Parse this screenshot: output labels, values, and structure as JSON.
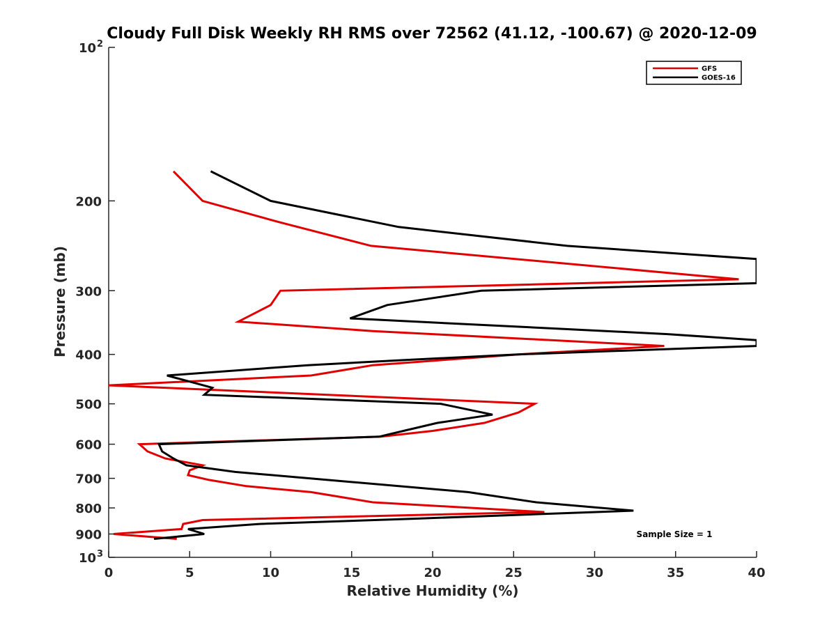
{
  "chart_data": {
    "type": "line",
    "title": "Cloudy Full Disk Weekly RH RMS over 72562 (41.12, -100.67) @ 2020-12-09",
    "xlabel": "Relative Humidity (%)",
    "ylabel": "Pressure (mb)",
    "xlim": [
      0,
      40
    ],
    "ylim": [
      100,
      1000
    ],
    "yscale": "log",
    "yreversed": true,
    "grid": false,
    "legend_position": "top-right",
    "x_ticks": [
      {
        "value": 0,
        "label": "0"
      },
      {
        "value": 5,
        "label": "5"
      },
      {
        "value": 10,
        "label": "10"
      },
      {
        "value": 15,
        "label": "15"
      },
      {
        "value": 20,
        "label": "20"
      },
      {
        "value": 25,
        "label": "25"
      },
      {
        "value": 30,
        "label": "30"
      },
      {
        "value": 35,
        "label": "35"
      },
      {
        "value": 40,
        "label": "40"
      }
    ],
    "y_ticks": [
      {
        "value": 100,
        "label": "10",
        "sup": "2"
      },
      {
        "value": 200,
        "label": "200"
      },
      {
        "value": 300,
        "label": "300"
      },
      {
        "value": 400,
        "label": "400"
      },
      {
        "value": 500,
        "label": "500"
      },
      {
        "value": 600,
        "label": "600"
      },
      {
        "value": 700,
        "label": "700"
      },
      {
        "value": 800,
        "label": "800"
      },
      {
        "value": 900,
        "label": "900"
      },
      {
        "value": 1000,
        "label": "10",
        "sup": "3"
      }
    ],
    "series": [
      {
        "name": "GFS",
        "color": "#e00000",
        "points": [
          [
            4.0,
            175
          ],
          [
            5.8,
            200
          ],
          [
            10.5,
            220
          ],
          [
            16.2,
            245
          ],
          [
            38.9,
            285
          ],
          [
            10.6,
            300
          ],
          [
            10.0,
            320
          ],
          [
            8.0,
            345
          ],
          [
            16.3,
            360
          ],
          [
            34.3,
            385
          ],
          [
            25.3,
            400
          ],
          [
            16.3,
            420
          ],
          [
            12.5,
            440
          ],
          [
            0.0,
            460
          ],
          [
            26.3,
            500
          ],
          [
            25.3,
            520
          ],
          [
            23.2,
            545
          ],
          [
            20.0,
            565
          ],
          [
            16.8,
            580
          ],
          [
            1.9,
            600
          ],
          [
            2.4,
            620
          ],
          [
            3.5,
            640
          ],
          [
            5.8,
            660
          ],
          [
            5.0,
            675
          ],
          [
            4.9,
            690
          ],
          [
            6.2,
            705
          ],
          [
            8.5,
            725
          ],
          [
            12.5,
            745
          ],
          [
            16.3,
            780
          ],
          [
            26.9,
            815
          ],
          [
            5.8,
            845
          ],
          [
            4.6,
            860
          ],
          [
            4.5,
            880
          ],
          [
            0.3,
            900
          ],
          [
            4.2,
            920
          ]
        ]
      },
      {
        "name": "GOES-16",
        "color": "#000000",
        "points": [
          [
            6.3,
            175
          ],
          [
            10.0,
            200
          ],
          [
            17.9,
            225
          ],
          [
            28.3,
            245
          ],
          [
            40.0,
            260
          ],
          [
            40.0,
            290
          ],
          [
            23.0,
            300
          ],
          [
            17.2,
            320
          ],
          [
            14.9,
            340
          ],
          [
            34.5,
            365
          ],
          [
            40.0,
            375
          ],
          [
            40.0,
            385
          ],
          [
            25.3,
            400
          ],
          [
            18.4,
            410
          ],
          [
            12.3,
            420
          ],
          [
            3.6,
            440
          ],
          [
            6.4,
            465
          ],
          [
            5.9,
            480
          ],
          [
            20.5,
            500
          ],
          [
            23.7,
            525
          ],
          [
            20.3,
            545
          ],
          [
            18.2,
            565
          ],
          [
            16.7,
            580
          ],
          [
            3.1,
            600
          ],
          [
            3.3,
            620
          ],
          [
            4.0,
            640
          ],
          [
            4.8,
            660
          ],
          [
            7.8,
            680
          ],
          [
            12.4,
            700
          ],
          [
            22.2,
            745
          ],
          [
            26.4,
            780
          ],
          [
            32.4,
            810
          ],
          [
            18.8,
            840
          ],
          [
            9.3,
            860
          ],
          [
            4.9,
            880
          ],
          [
            5.9,
            900
          ],
          [
            2.8,
            920
          ]
        ]
      }
    ],
    "annotations": [
      {
        "text": "Sample Size = 1"
      }
    ]
  }
}
